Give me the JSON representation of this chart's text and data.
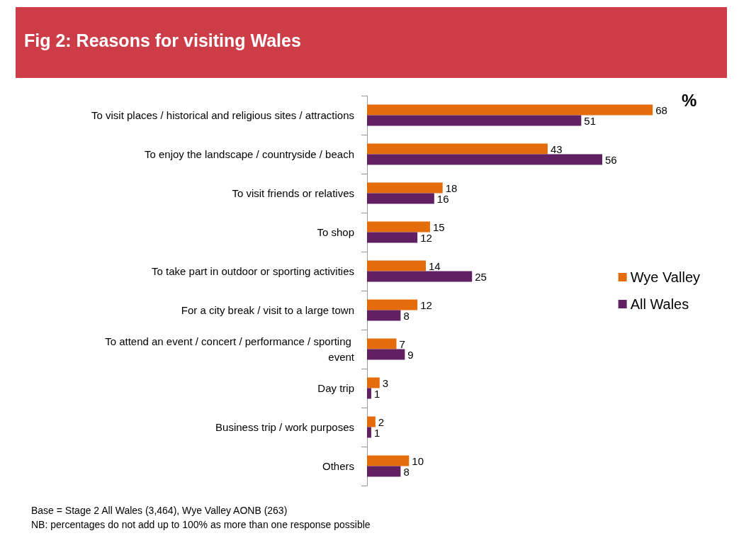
{
  "chart_data": {
    "type": "bar",
    "orientation": "horizontal",
    "title": "Fig 2: Reasons for visiting Wales",
    "categories": [
      "To visit places / historical and religious sites / attractions",
      "To enjoy the landscape / countryside / beach",
      "To visit friends or relatives",
      "To shop",
      "To take part in outdoor or sporting activities",
      "For a city break / visit to a large town",
      "To attend an event / concert / performance / sporting event",
      "Day trip",
      "Business trip / work purposes",
      "Others"
    ],
    "series": [
      {
        "name": "Wye Valley",
        "color": "#e46c0a",
        "values": [
          68,
          43,
          18,
          15,
          14,
          12,
          7,
          3,
          2,
          10
        ]
      },
      {
        "name": "All Wales",
        "color": "#612062",
        "values": [
          51,
          56,
          16,
          12,
          25,
          8,
          9,
          1,
          1,
          8
        ]
      }
    ],
    "data_labels": true,
    "legend": "right",
    "tick_labels": "y",
    "annotations": [
      "%",
      "Base = Stage 2 All Wales  (3,464), Wye Valley AONB (263)",
      "NB: percentages do not add up to 100%  as more than one response possible"
    ]
  }
}
